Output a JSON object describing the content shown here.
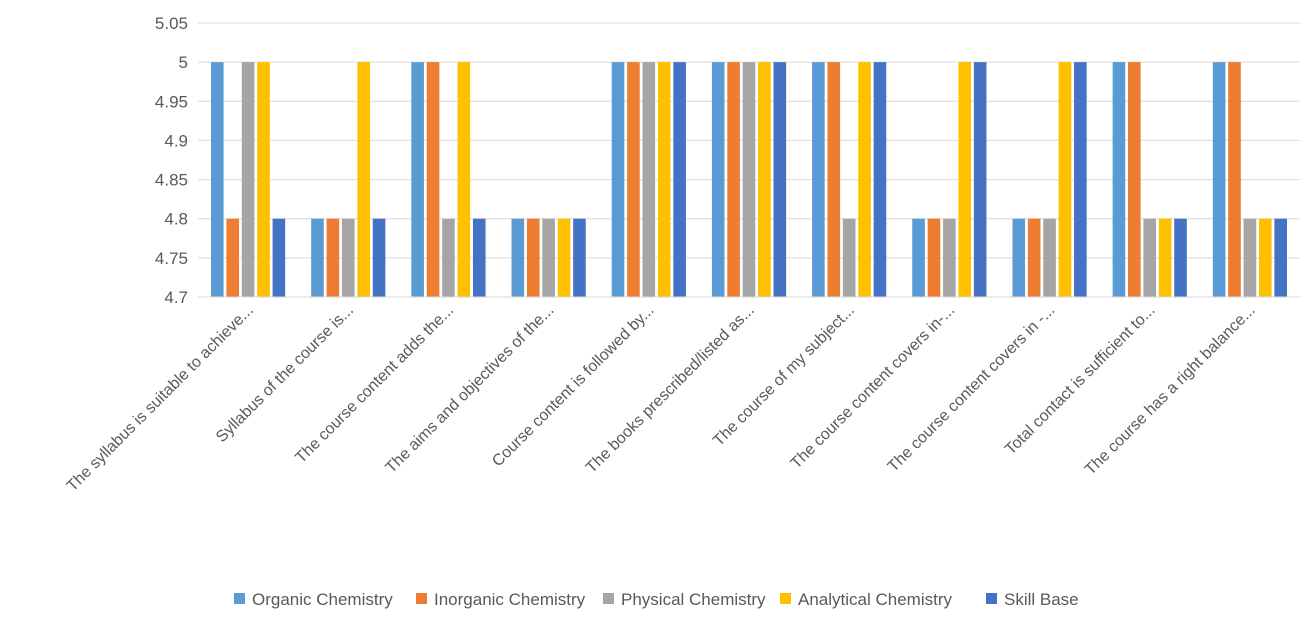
{
  "chart_data": {
    "type": "bar",
    "title": "",
    "xlabel": "",
    "ylabel": "",
    "ylim": [
      4.7,
      5.05
    ],
    "y_ticks": [
      "4.7",
      "4.75",
      "4.8",
      "4.85",
      "4.9",
      "4.95",
      "5",
      "5.05"
    ],
    "grid": true,
    "legend_position": "bottom",
    "categories": [
      "The syllabus is suitable to achieve...",
      "Syllabus of the course is...",
      "The course content adds the...",
      "The aims and objectives of the...",
      "Course content is followed by...",
      "The books prescribed/listed as...",
      "The course of my subject...",
      "The course content covers in-...",
      "The course content covers in -...",
      "Total contact is sufficient to...",
      "The course has a right balance..."
    ],
    "series": [
      {
        "name": "Organic Chemistry",
        "color": "#5B9BD5",
        "values": [
          5,
          4.8,
          5,
          4.8,
          5,
          5,
          5,
          4.8,
          4.8,
          5,
          5
        ]
      },
      {
        "name": "Inorganic Chemistry",
        "color": "#ED7D31",
        "values": [
          4.8,
          4.8,
          5,
          4.8,
          5,
          5,
          5,
          4.8,
          4.8,
          5,
          5
        ]
      },
      {
        "name": "Physical Chemistry",
        "color": "#A5A5A5",
        "values": [
          5,
          4.8,
          4.8,
          4.8,
          5,
          5,
          4.8,
          4.8,
          4.8,
          4.8,
          4.8
        ]
      },
      {
        "name": "Analytical Chemistry",
        "color": "#FFC000",
        "values": [
          5,
          5,
          5,
          4.8,
          5,
          5,
          5,
          5,
          5,
          4.8,
          4.8
        ]
      },
      {
        "name": "Skill Base",
        "color": "#4472C4",
        "values": [
          4.8,
          4.8,
          4.8,
          4.8,
          5,
          5,
          5,
          5,
          5,
          4.8,
          4.8
        ]
      }
    ]
  }
}
